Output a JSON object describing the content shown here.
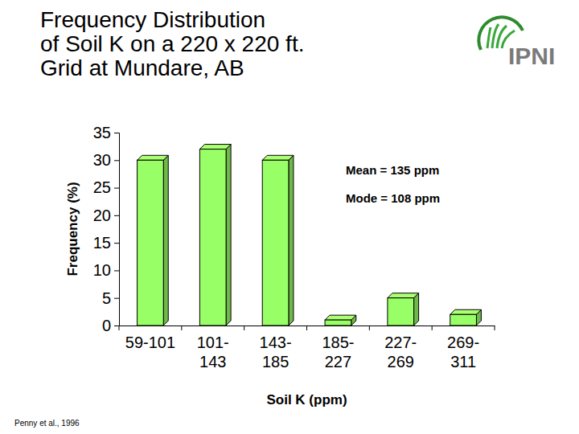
{
  "chart_data": {
    "type": "bar",
    "title": [
      "Frequency Distribution",
      "of Soil K on a 220 x 220 ft.",
      "Grid at Mundare, AB"
    ],
    "x_label": "Soil K (ppm)",
    "y_label": "Frequency (%)",
    "categories": [
      "59-101",
      "101-143",
      "143-185",
      "185-227",
      "227-269",
      "269-311"
    ],
    "values": [
      30,
      32,
      30,
      1,
      5,
      2
    ],
    "color": "#99ff66",
    "ylim": [
      0,
      35
    ],
    "yticks": [
      0,
      5,
      10,
      15,
      20,
      25,
      30,
      35
    ],
    "grid": false,
    "annotations": [
      "Mean = 135 ppm",
      "Mode = 108 ppm"
    ],
    "source": "Penny et al., 1996",
    "logo_text": "IPNI"
  }
}
